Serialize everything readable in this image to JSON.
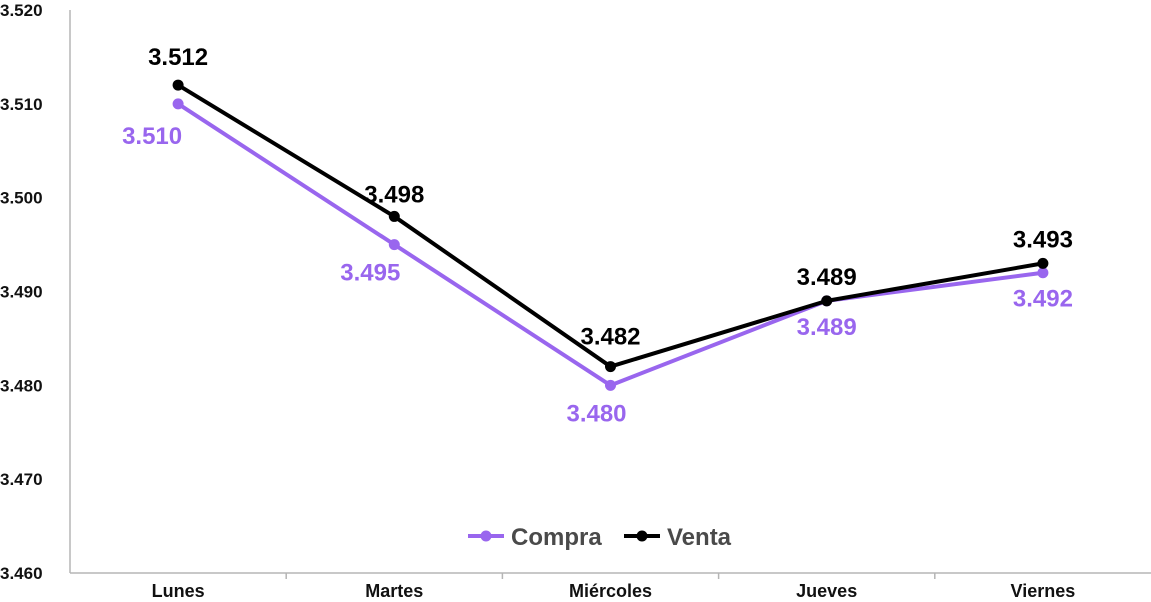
{
  "chart_data": {
    "type": "line",
    "categories": [
      "Lunes",
      "Martes",
      "Miércoles",
      "Jueves",
      "Viernes"
    ],
    "series": [
      {
        "name": "Compra",
        "values": [
          3.51,
          3.495,
          3.48,
          3.489,
          3.492
        ],
        "labels": [
          "3.510",
          "3.495",
          "3.480",
          "3.489",
          "3.492"
        ],
        "color": "#9966ee",
        "label_position": "below"
      },
      {
        "name": "Venta",
        "values": [
          3.512,
          3.498,
          3.482,
          3.489,
          3.493
        ],
        "labels": [
          "3.512",
          "3.498",
          "3.482",
          "3.489",
          "3.493"
        ],
        "color": "#000000",
        "label_position": "above"
      }
    ],
    "ylim": [
      3.46,
      3.52
    ],
    "yticks": [
      "3.460",
      "3.470",
      "3.480",
      "3.490",
      "3.500",
      "3.510",
      "3.520"
    ],
    "title": "",
    "xlabel": "",
    "ylabel": "",
    "grid": false,
    "legend_position": "bottom-center"
  }
}
